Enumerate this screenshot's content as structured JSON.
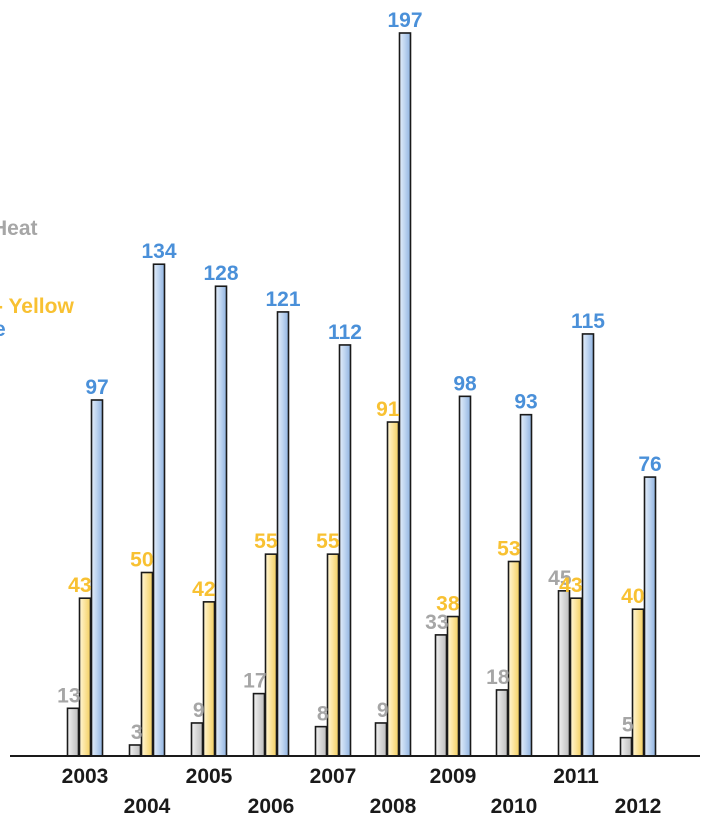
{
  "chart_data": {
    "type": "bar",
    "categories": [
      "2003",
      "2004",
      "2005",
      "2006",
      "2007",
      "2008",
      "2009",
      "2010",
      "2011",
      "2012"
    ],
    "series": [
      {
        "name": "Heat",
        "color": "#a6a6a6",
        "values": [
          13,
          3,
          9,
          17,
          8,
          9,
          33,
          18,
          45,
          5
        ]
      },
      {
        "name": "Yellow",
        "color": "#f8c132",
        "values": [
          43,
          50,
          42,
          55,
          55,
          91,
          38,
          53,
          43,
          40
        ]
      },
      {
        "name": "e",
        "color": "#4a90d9",
        "values": [
          97,
          134,
          128,
          121,
          112,
          197,
          98,
          93,
          115,
          76
        ]
      }
    ],
    "ylim": [
      0,
      200
    ],
    "grid": false,
    "legend_position": "left (partially cropped)"
  },
  "legend": {
    "items": [
      {
        "text": "Heat",
        "color": "#a6a6a6"
      },
      {
        "text": "- Yellow",
        "color": "#f8c132"
      },
      {
        "text": "e",
        "color": "#4a90d9"
      }
    ]
  }
}
